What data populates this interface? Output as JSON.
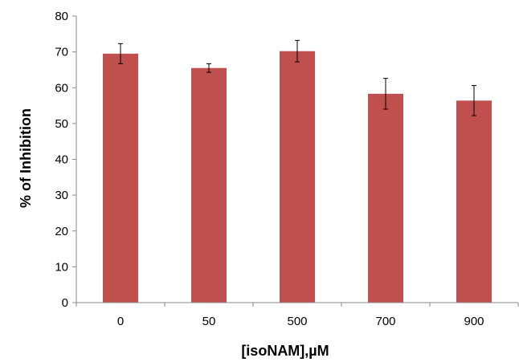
{
  "chart_data": {
    "type": "bar",
    "categories": [
      "0",
      "50",
      "500",
      "700",
      "900"
    ],
    "values": [
      69.5,
      65.5,
      70.2,
      58.3,
      56.4
    ],
    "error": [
      2.8,
      1.2,
      3.0,
      4.3,
      4.2
    ],
    "xlabel": "[isoNAM],µM",
    "ylabel": "% of Inhibition",
    "ylim": [
      0,
      80
    ],
    "yticks": [
      "0",
      "10",
      "20",
      "30",
      "40",
      "50",
      "60",
      "70",
      "80"
    ],
    "grid": false,
    "bar_color": "#c0504d"
  }
}
